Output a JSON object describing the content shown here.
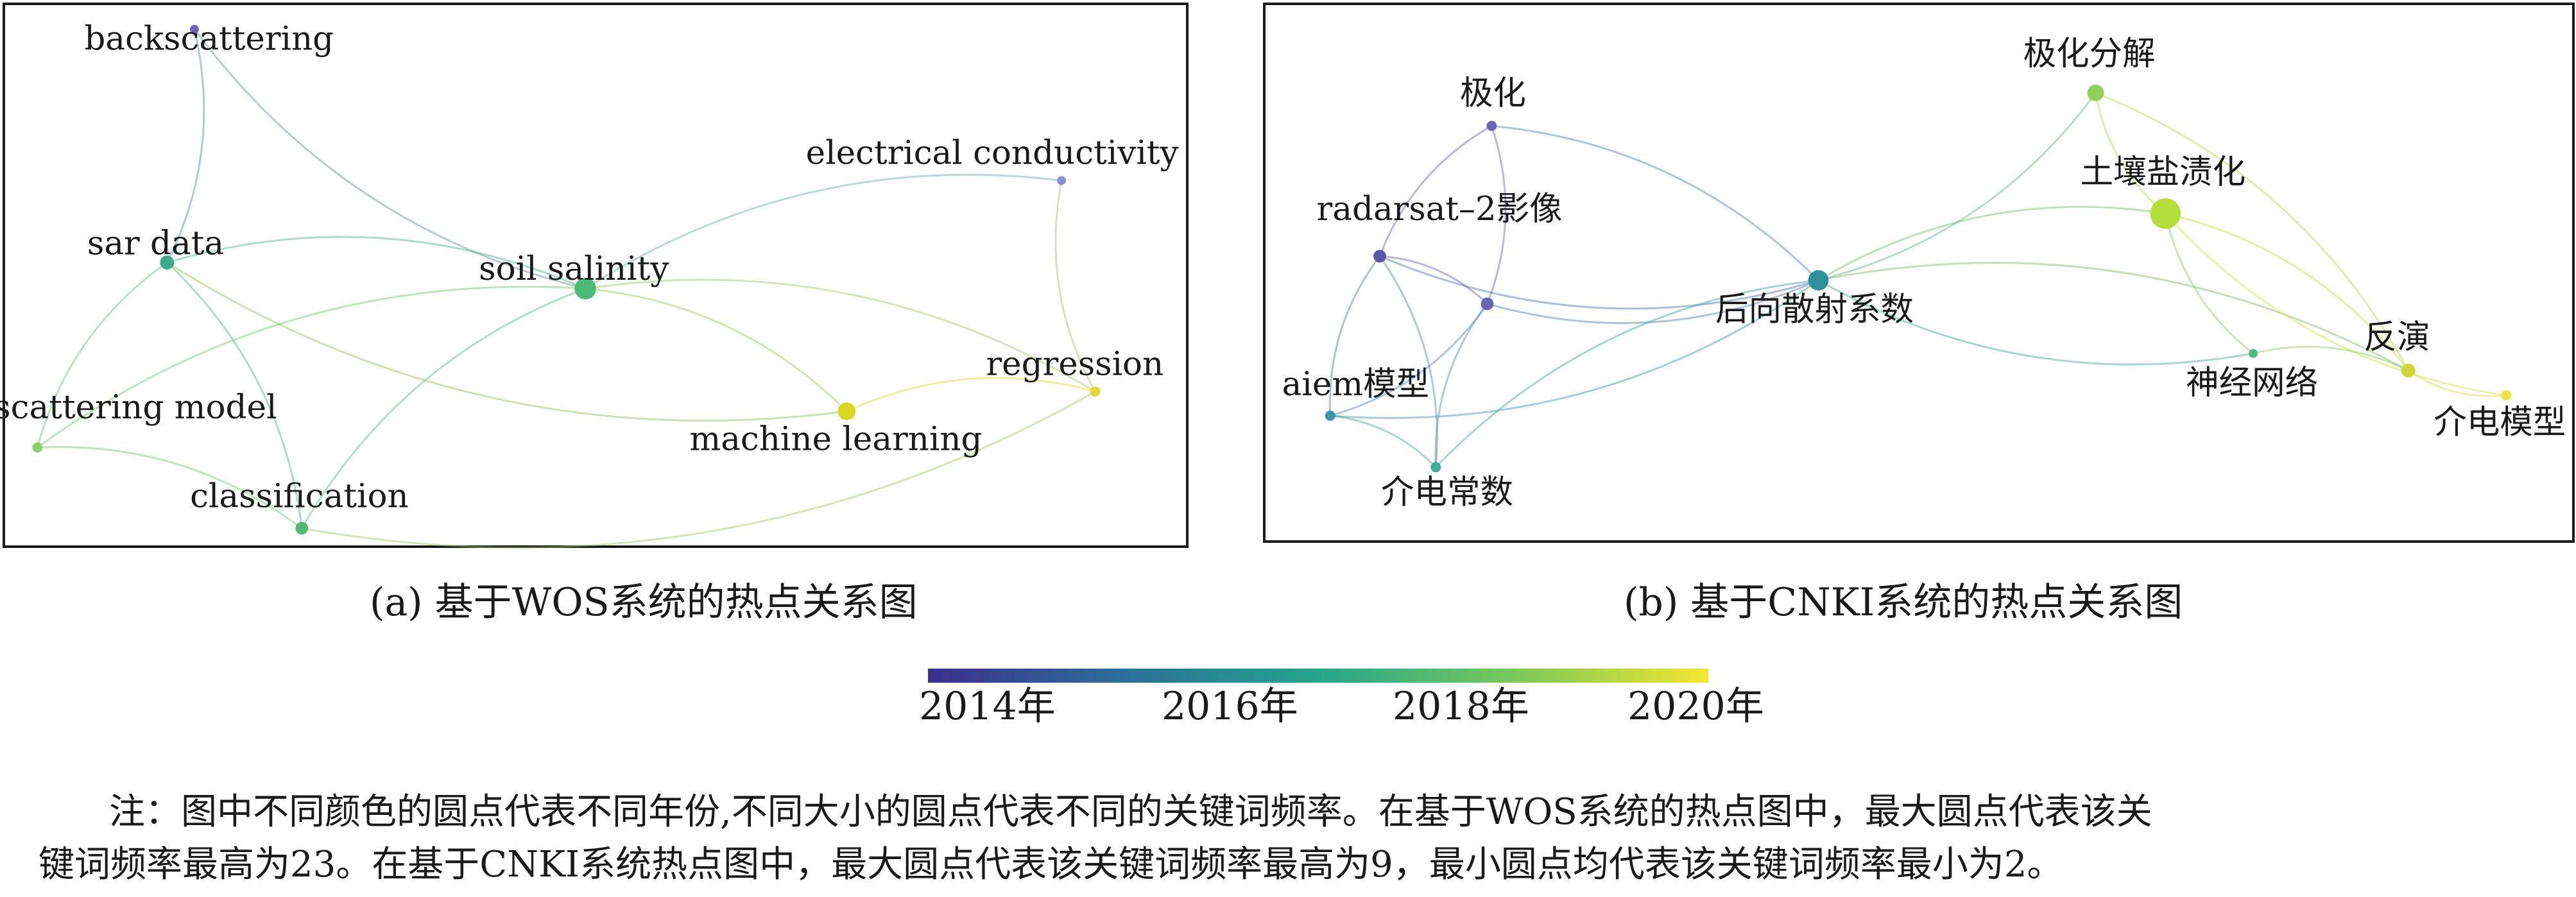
{
  "panels": [
    {
      "id": "a",
      "caption": "(a) 基于WOS系统的热点关系图",
      "nodes": [
        {
          "id": "backscattering",
          "label": "backscattering",
          "color": "#6b63b8"
        },
        {
          "id": "sar_data",
          "label": "sar data",
          "color": "#3eaa8a"
        },
        {
          "id": "soil_salinity",
          "label": "soil salinity",
          "color": "#4db87a"
        },
        {
          "id": "electrical_conductivity",
          "label": "electrical conductivity",
          "color": "#8a8ed4"
        },
        {
          "id": "regression",
          "label": "regression",
          "color": "#e2d63a"
        },
        {
          "id": "scattering_model",
          "label": "scattering model",
          "color": "#8cd068"
        },
        {
          "id": "machine_learning",
          "label": "machine learning",
          "color": "#d9d524"
        },
        {
          "id": "classification",
          "label": "classification",
          "color": "#52b777"
        }
      ],
      "edges": [
        [
          "backscattering",
          "sar_data"
        ],
        [
          "backscattering",
          "soil_salinity"
        ],
        [
          "sar_data",
          "soil_salinity"
        ],
        [
          "sar_data",
          "machine_learning"
        ],
        [
          "sar_data",
          "classification"
        ],
        [
          "sar_data",
          "scattering_model"
        ],
        [
          "soil_salinity",
          "machine_learning"
        ],
        [
          "soil_salinity",
          "classification"
        ],
        [
          "soil_salinity",
          "electrical_conductivity"
        ],
        [
          "soil_salinity",
          "scattering_model"
        ],
        [
          "soil_salinity",
          "regression"
        ],
        [
          "electrical_conductivity",
          "regression"
        ],
        [
          "machine_learning",
          "regression"
        ],
        [
          "classification",
          "regression"
        ],
        [
          "scattering_model",
          "classification"
        ]
      ]
    },
    {
      "id": "b",
      "caption": "(b) 基于CNKI系统的热点关系图",
      "nodes": [
        {
          "id": "jihua",
          "label": "极化",
          "color": "#6e64b6"
        },
        {
          "id": "jihua_fenjie",
          "label": "极化分解",
          "color": "#8fd15a"
        },
        {
          "id": "turang",
          "label": "土壤盐渍化",
          "color": "#b4dc3a"
        },
        {
          "id": "radarsat",
          "label": "radarsat–2影像",
          "color": "#5d55a8"
        },
        {
          "id": "unlabeled",
          "label": "",
          "color": "#6a64b2"
        },
        {
          "id": "houxiang",
          "label": "后向散射系数",
          "color": "#2f8f9d"
        },
        {
          "id": "fanyan",
          "label": "反演",
          "color": "#cfd63a"
        },
        {
          "id": "shenjing",
          "label": "神经网络",
          "color": "#4db88a"
        },
        {
          "id": "aiem",
          "label": "aiem模型",
          "color": "#3a94a6"
        },
        {
          "id": "jiedian_moxing",
          "label": "介电模型",
          "color": "#ece246"
        },
        {
          "id": "jiedian_changshu",
          "label": "介电常数",
          "color": "#44aaa0"
        }
      ],
      "edges": [
        [
          "jihua",
          "houxiang"
        ],
        [
          "jihua",
          "radarsat"
        ],
        [
          "jihua",
          "unlabeled"
        ],
        [
          "radarsat",
          "houxiang"
        ],
        [
          "radarsat",
          "unlabeled"
        ],
        [
          "radarsat",
          "aiem"
        ],
        [
          "radarsat",
          "jiedian_changshu"
        ],
        [
          "unlabeled",
          "houxiang"
        ],
        [
          "unlabeled",
          "aiem"
        ],
        [
          "unlabeled",
          "jiedian_changshu"
        ],
        [
          "aiem",
          "jiedian_changshu"
        ],
        [
          "aiem",
          "houxiang"
        ],
        [
          "jiedian_changshu",
          "houxiang"
        ],
        [
          "houxiang",
          "jihua_fenjie"
        ],
        [
          "houxiang",
          "turang"
        ],
        [
          "houxiang",
          "shenjing"
        ],
        [
          "houxiang",
          "fanyan"
        ],
        [
          "jihua_fenjie",
          "turang"
        ],
        [
          "jihua_fenjie",
          "fanyan"
        ],
        [
          "turang",
          "shenjing"
        ],
        [
          "turang",
          "fanyan"
        ],
        [
          "turang",
          "jiedian_moxing"
        ],
        [
          "shenjing",
          "fanyan"
        ],
        [
          "fanyan",
          "jiedian_moxing"
        ]
      ]
    }
  ],
  "legend": {
    "ticks": [
      "2014年",
      "2016年",
      "2018年",
      "2020年"
    ],
    "gradient": [
      "#3b2f8c",
      "#2c6f9a",
      "#24a58c",
      "#78c95a",
      "#f4e630"
    ]
  },
  "note": {
    "line1": "注：图中不同颜色的圆点代表不同年份,不同大小的圆点代表不同的关键词频率。在基于WOS系统的热点图中，最大圆点代表该关",
    "line2": "键词频率最高为23。在基于CNKI系统热点图中，最大圆点代表该关键词频率最高为9，最小圆点均代表该关键词频率最小为2。"
  }
}
